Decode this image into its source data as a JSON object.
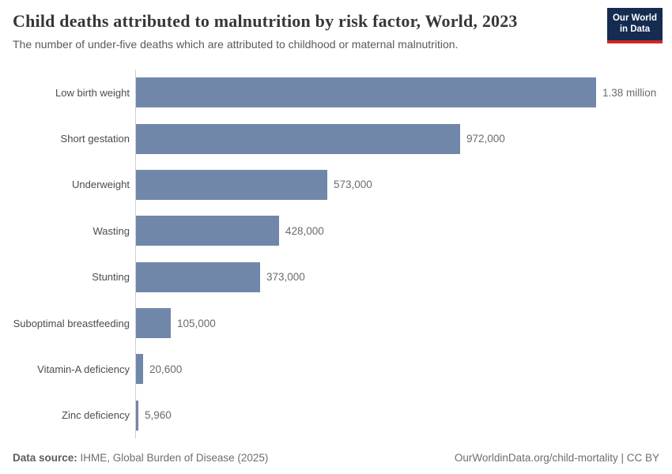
{
  "header": {
    "title": "Child deaths attributed to malnutrition by risk factor, World, 2023",
    "subtitle": "The number of under-five deaths which are attributed to childhood or maternal malnutrition.",
    "logo": {
      "line1": "Our World",
      "line2": "in Data"
    }
  },
  "chart_data": {
    "type": "bar",
    "orientation": "horizontal",
    "title": "Child deaths attributed to malnutrition by risk factor, World, 2023",
    "categories": [
      "Low birth weight",
      "Short gestation",
      "Underweight",
      "Wasting",
      "Stunting",
      "Suboptimal breastfeeding",
      "Vitamin-A deficiency",
      "Zinc deficiency"
    ],
    "values": [
      1380000,
      972000,
      573000,
      428000,
      373000,
      105000,
      20600,
      5960
    ],
    "value_labels": [
      "1.38 million",
      "972,000",
      "573,000",
      "428,000",
      "373,000",
      "105,000",
      "20,600",
      "5,960"
    ],
    "xlim": [
      0,
      1380000
    ],
    "grid": false,
    "legend": "none",
    "bar_color": "#7187aa"
  },
  "footer": {
    "source_label": "Data source:",
    "source_text": " IHME, Global Burden of Disease (2025)",
    "credit": "OurWorldinData.org/child-mortality | CC BY"
  },
  "colors": {
    "bar": "#7187aa",
    "logo_navy": "#132c4f",
    "logo_red": "#cf2724",
    "axis": "#d0d0d0"
  }
}
